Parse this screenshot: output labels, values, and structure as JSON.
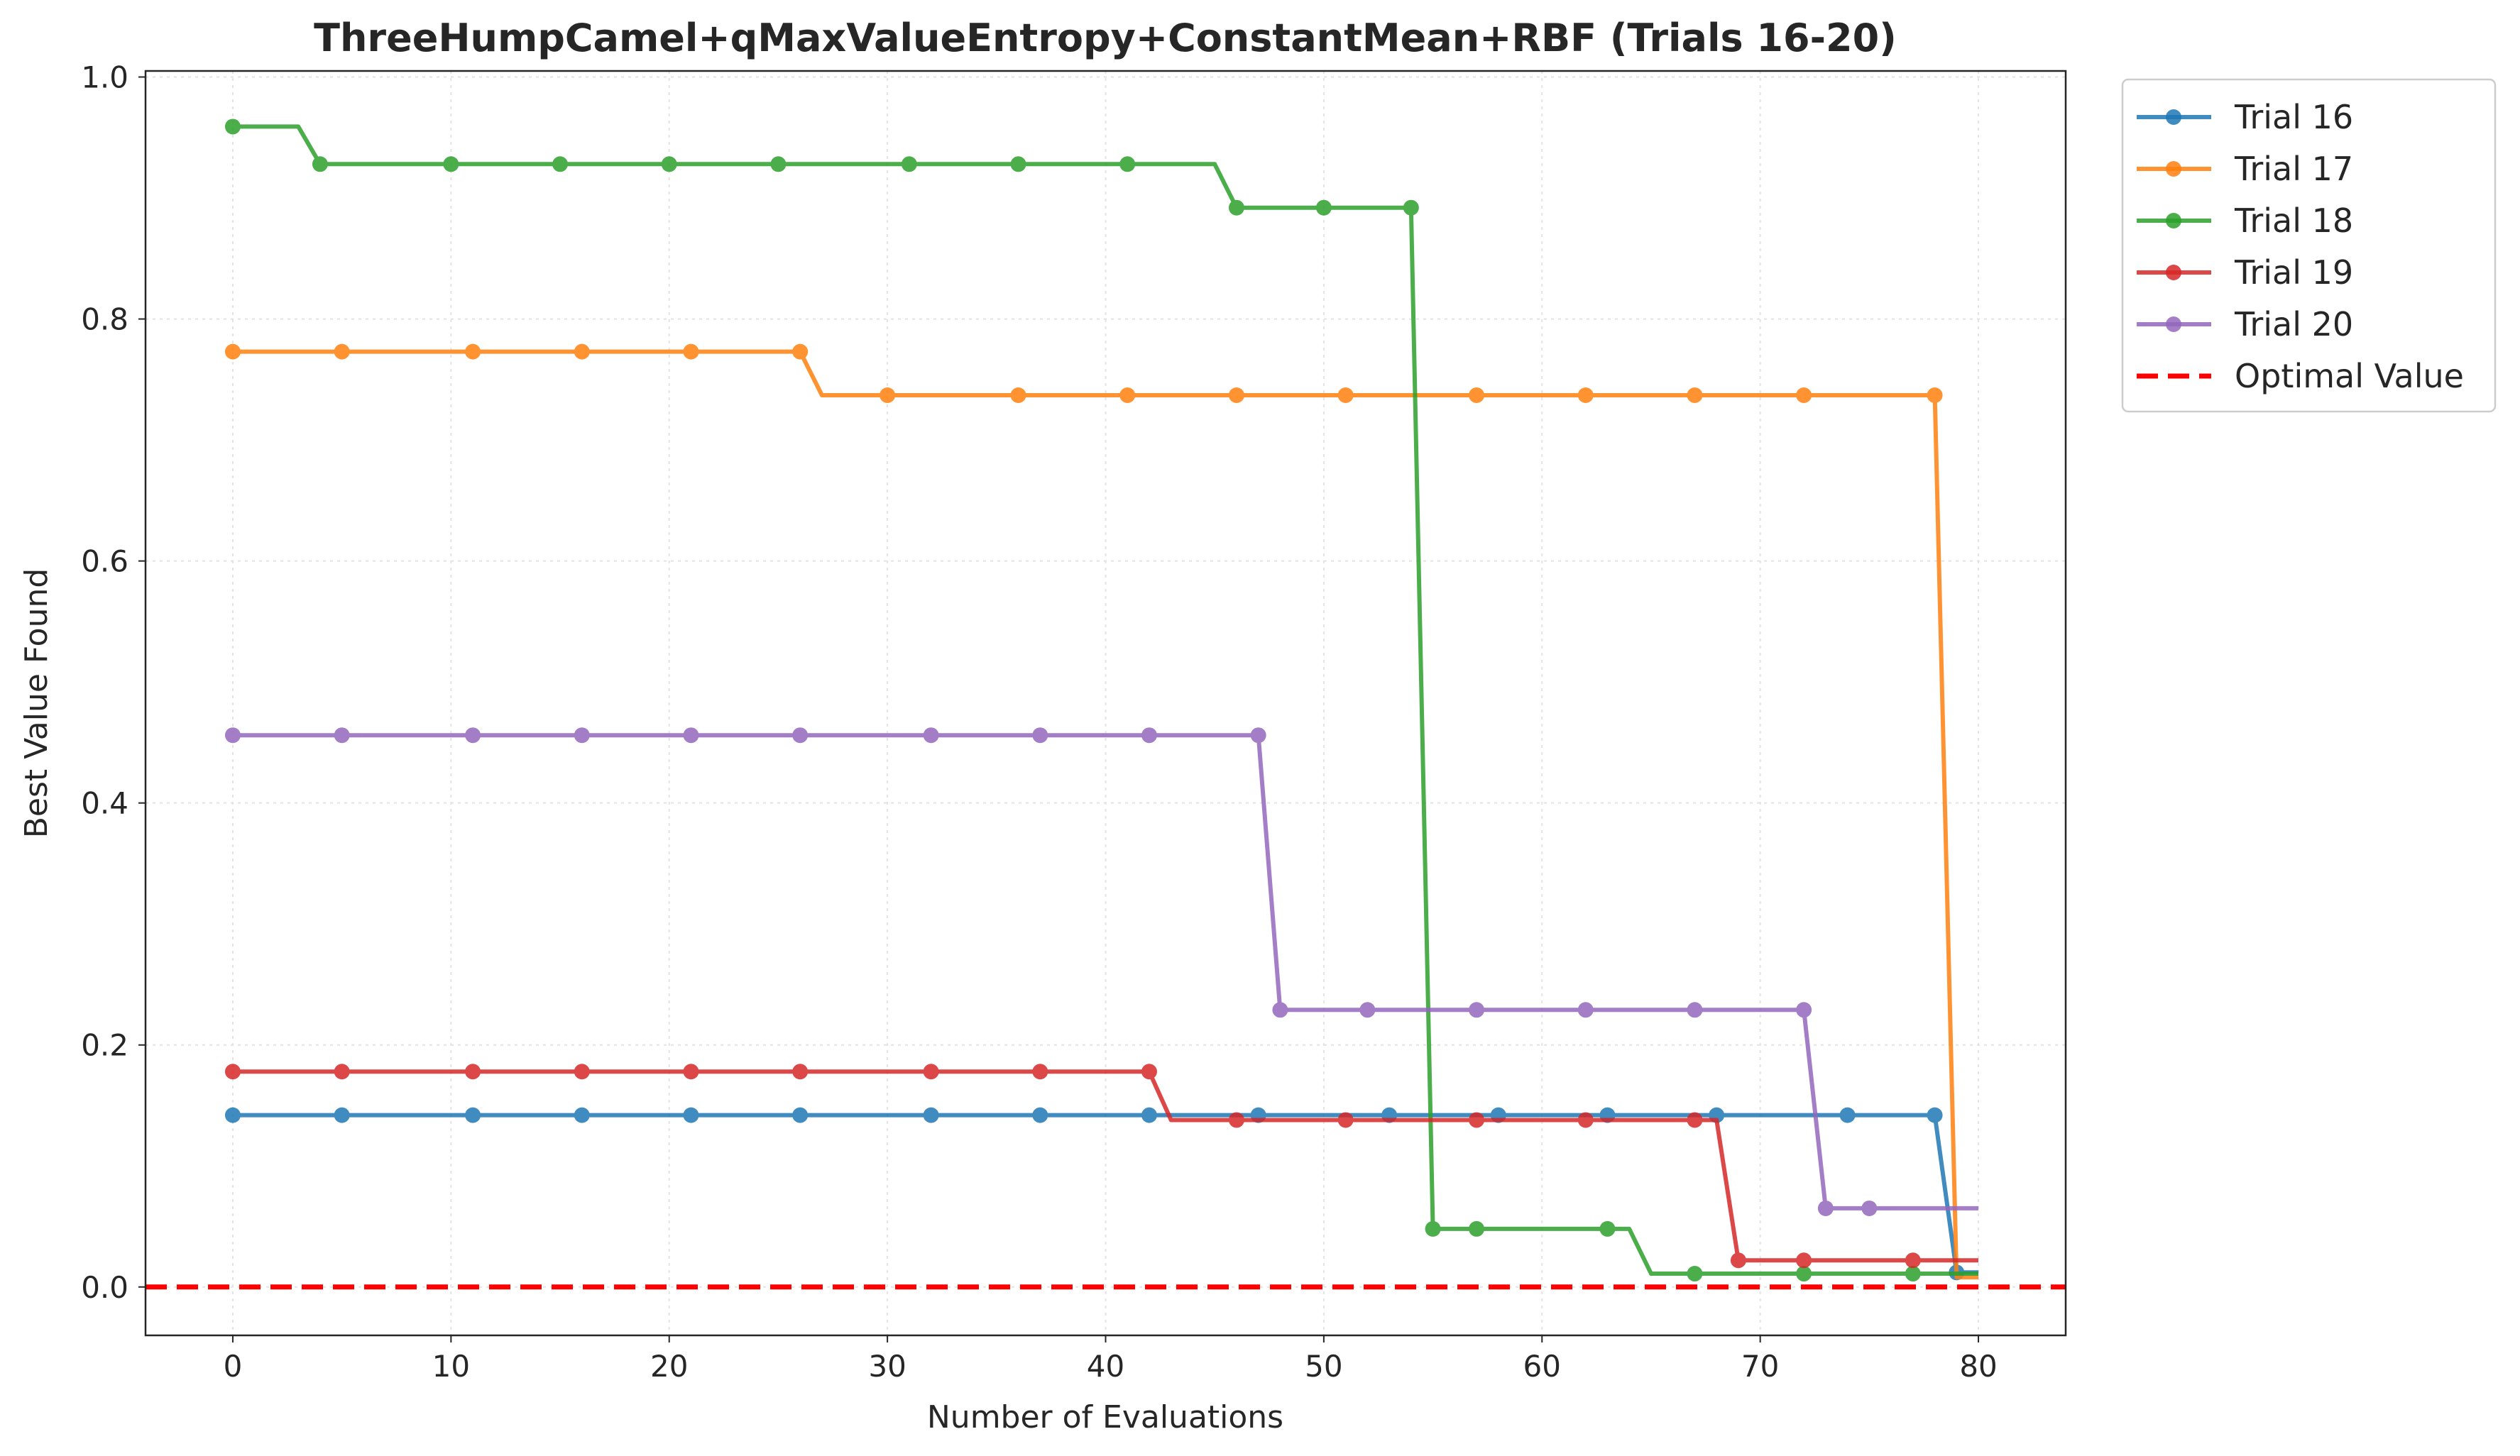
{
  "chart_data": {
    "type": "line",
    "title": "ThreeHumpCamel+qMaxValueEntropy+ConstantMean+RBF (Trials 16-20)",
    "xlabel": "Number of Evaluations",
    "ylabel": "Best Value Found",
    "xlim": [
      -4,
      84
    ],
    "ylim": [
      -0.04,
      1.005
    ],
    "xticks": [
      0,
      10,
      20,
      30,
      40,
      50,
      60,
      70,
      80
    ],
    "yticks": [
      0.0,
      0.2,
      0.4,
      0.6,
      0.8,
      1.0
    ],
    "xtick_labels": [
      "0",
      "10",
      "20",
      "30",
      "40",
      "50",
      "60",
      "70",
      "80"
    ],
    "ytick_labels": [
      "0.0",
      "0.2",
      "0.4",
      "0.6",
      "0.8",
      "1.0"
    ],
    "grid": true,
    "legend_position": "outside-top-right",
    "series": [
      {
        "name": "Trial 16",
        "color": "#1f77b4",
        "steps": [
          [
            0,
            0.142
          ],
          [
            78,
            0.142
          ],
          [
            79,
            0.012
          ],
          [
            80,
            0.012
          ]
        ],
        "markers": [
          0,
          5,
          11,
          16,
          21,
          26,
          32,
          37,
          42,
          47,
          53,
          58,
          63,
          68,
          74,
          78,
          79
        ]
      },
      {
        "name": "Trial 17",
        "color": "#ff7f0e",
        "steps": [
          [
            0,
            0.773
          ],
          [
            26,
            0.773
          ],
          [
            27,
            0.737
          ],
          [
            78,
            0.737
          ],
          [
            79,
            0.008
          ],
          [
            80,
            0.008
          ]
        ],
        "markers": [
          0,
          5,
          11,
          16,
          21,
          26,
          30,
          36,
          41,
          46,
          51,
          57,
          62,
          67,
          72,
          78
        ]
      },
      {
        "name": "Trial 18",
        "color": "#2ca02c",
        "steps": [
          [
            0,
            0.959
          ],
          [
            3,
            0.959
          ],
          [
            4,
            0.928
          ],
          [
            45,
            0.928
          ],
          [
            46,
            0.892
          ],
          [
            54,
            0.892
          ],
          [
            55,
            0.048
          ],
          [
            64,
            0.048
          ],
          [
            65,
            0.011
          ],
          [
            80,
            0.011
          ]
        ],
        "markers": [
          0,
          4,
          10,
          15,
          20,
          25,
          31,
          36,
          41,
          46,
          50,
          54,
          55,
          57,
          63,
          67,
          72,
          77
        ]
      },
      {
        "name": "Trial 19",
        "color": "#d62728",
        "steps": [
          [
            0,
            0.178
          ],
          [
            42,
            0.178
          ],
          [
            43,
            0.138
          ],
          [
            68,
            0.138
          ],
          [
            69,
            0.022
          ],
          [
            80,
            0.022
          ]
        ],
        "markers": [
          0,
          5,
          11,
          16,
          21,
          26,
          32,
          37,
          42,
          46,
          51,
          57,
          62,
          67,
          69,
          72,
          77
        ]
      },
      {
        "name": "Trial 20",
        "color": "#9467bd",
        "steps": [
          [
            0,
            0.456
          ],
          [
            47,
            0.456
          ],
          [
            48,
            0.229
          ],
          [
            72,
            0.229
          ],
          [
            73,
            0.065
          ],
          [
            80,
            0.065
          ]
        ],
        "markers": [
          0,
          5,
          11,
          16,
          21,
          26,
          32,
          37,
          42,
          47,
          48,
          52,
          57,
          62,
          67,
          72,
          73,
          75
        ]
      }
    ],
    "reference_line": {
      "name": "Optimal Value",
      "y": 0.0,
      "color": "#ff0000",
      "style": "dashed"
    }
  }
}
